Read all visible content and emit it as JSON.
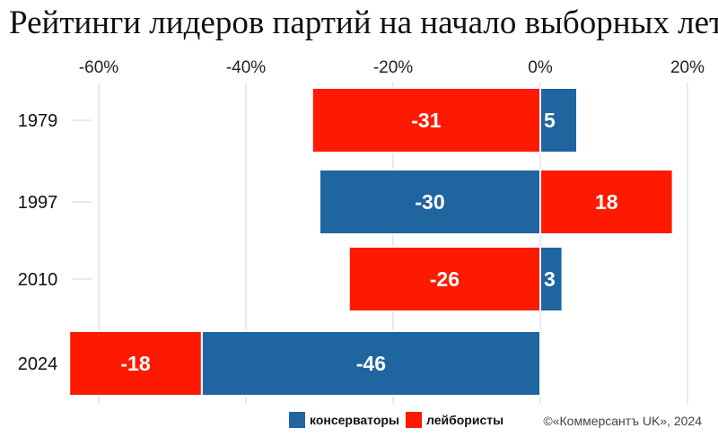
{
  "title": "Рейтинги лидеров партий на начало выборных лет",
  "credit": "©«Коммерсантъ UK», 2024",
  "colors": {
    "conservatives": "#1f65a0",
    "labour": "#fe1a00"
  },
  "chart_data": {
    "type": "bar",
    "orientation": "horizontal",
    "stacked": true,
    "title": "Рейтинги лидеров партий на начало выборных лет",
    "xlim": [
      -60,
      20
    ],
    "x_ticks": [
      -60,
      -40,
      -20,
      0,
      20
    ],
    "x_tick_labels": [
      "-60%",
      "-40%",
      "-20%",
      "0%",
      "20%"
    ],
    "grid": true,
    "legend_position": "bottom",
    "categories": [
      "1979",
      "1997",
      "2010",
      "2024"
    ],
    "series": [
      {
        "name": "консерваторы",
        "key": "conservatives",
        "values": [
          5,
          -30,
          3,
          -46
        ]
      },
      {
        "name": "лейбористы",
        "key": "labour",
        "values": [
          -31,
          18,
          -26,
          -18
        ]
      }
    ],
    "bars": [
      [
        {
          "series": "labour",
          "value": -31,
          "label": "-31"
        },
        {
          "series": "conservatives",
          "value": 5,
          "label": "5"
        }
      ],
      [
        {
          "series": "conservatives",
          "value": -30,
          "label": "-30"
        },
        {
          "series": "labour",
          "value": 18,
          "label": "18"
        }
      ],
      [
        {
          "series": "labour",
          "value": -26,
          "label": "-26"
        },
        {
          "series": "conservatives",
          "value": 3,
          "label": "3"
        }
      ],
      [
        {
          "series": "conservatives",
          "value": -46,
          "label": "-46"
        },
        {
          "series": "labour",
          "value": -18,
          "label": "-18"
        }
      ]
    ]
  }
}
